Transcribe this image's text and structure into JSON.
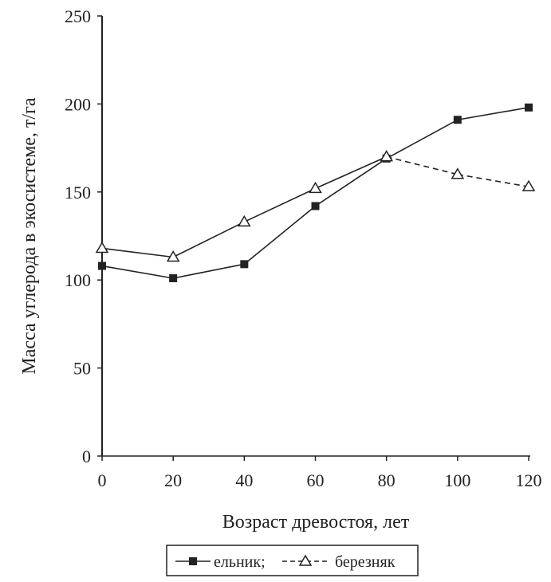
{
  "chart_data": {
    "type": "line",
    "x": [
      0,
      20,
      40,
      60,
      80,
      100,
      120
    ],
    "series": [
      {
        "name": "ельник;",
        "values": [
          108,
          101,
          109,
          142,
          169,
          191,
          198
        ],
        "marker": "filled-square",
        "line": "solid"
      },
      {
        "name": "березняк",
        "values": [
          118,
          113,
          133,
          152,
          170,
          160,
          153
        ],
        "marker": "open-triangle",
        "line": "solid",
        "dashed_from_x": 80
      }
    ],
    "xlabel": "Возраст древостоя, лет",
    "ylabel": "Масса углерода в экосистеме, т/га",
    "xticks": [
      0,
      20,
      40,
      60,
      80,
      100,
      120
    ],
    "yticks": [
      0,
      50,
      100,
      150,
      200,
      250
    ],
    "xlim": [
      0,
      120
    ],
    "ylim": [
      0,
      250
    ],
    "grid": false,
    "legend_position": "bottom",
    "colors": {
      "line": "#222222",
      "background": "#ffffff"
    }
  }
}
